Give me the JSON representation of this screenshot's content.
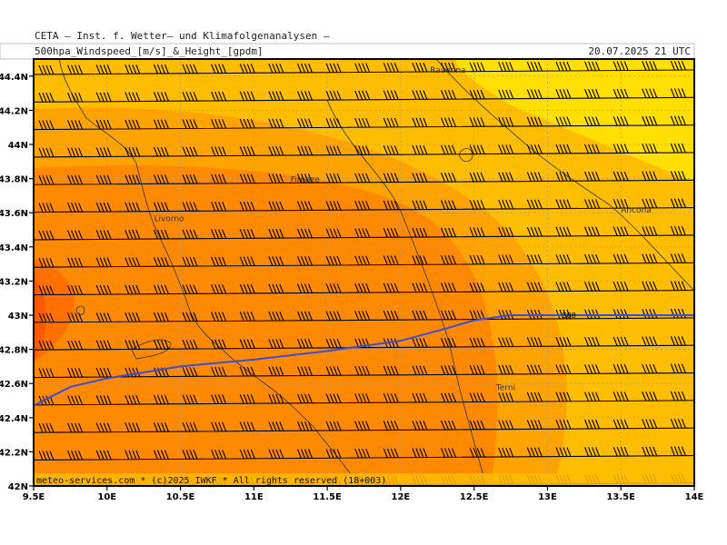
{
  "header": {
    "institute": "CETA — Inst. f. Wetter— und Klimafolgenanalysen —",
    "product": "500hpa_Windspeed_[m/s]_&_Height_[gpdm]",
    "valid_time": "20.07.2025 21 UTC"
  },
  "map": {
    "lon_range": [
      9.5,
      14.0
    ],
    "lat_range": [
      42.0,
      44.5
    ],
    "x_ticks": [
      {
        "value": 9.5,
        "label": "9.5E"
      },
      {
        "value": 10.0,
        "label": "10E"
      },
      {
        "value": 10.5,
        "label": "10.5E"
      },
      {
        "value": 11.0,
        "label": "11E"
      },
      {
        "value": 11.5,
        "label": "11.5E"
      },
      {
        "value": 12.0,
        "label": "12E"
      },
      {
        "value": 12.5,
        "label": "12.5E"
      },
      {
        "value": 13.0,
        "label": "13E"
      },
      {
        "value": 13.5,
        "label": "13.5E"
      },
      {
        "value": 14.0,
        "label": "14E"
      }
    ],
    "y_ticks": [
      {
        "value": 42.0,
        "label": "42N"
      },
      {
        "value": 42.2,
        "label": "42.2N"
      },
      {
        "value": 42.4,
        "label": "42.4N"
      },
      {
        "value": 42.6,
        "label": "42.6N"
      },
      {
        "value": 42.8,
        "label": "42.8N"
      },
      {
        "value": 43.0,
        "label": "43N"
      },
      {
        "value": 43.2,
        "label": "43.2N"
      },
      {
        "value": 43.4,
        "label": "43.4N"
      },
      {
        "value": 43.6,
        "label": "43.6N"
      },
      {
        "value": 43.8,
        "label": "43.8N"
      },
      {
        "value": 44.0,
        "label": "44N"
      },
      {
        "value": 44.2,
        "label": "44.2N"
      },
      {
        "value": 44.4,
        "label": "44.4N"
      }
    ],
    "cities": [
      {
        "name": "Ravenna",
        "lon": 12.2,
        "lat": 44.42
      },
      {
        "name": "Firenze",
        "lon": 11.25,
        "lat": 43.78
      },
      {
        "name": "Livorno",
        "lon": 10.32,
        "lat": 43.55
      },
      {
        "name": "Ancona",
        "lon": 13.5,
        "lat": 43.6
      },
      {
        "name": "Terni",
        "lon": 12.65,
        "lat": 42.56
      }
    ],
    "contour": {
      "label": "588",
      "points": [
        [
          9.5,
          42.47
        ],
        [
          9.75,
          42.58
        ],
        [
          10.0,
          42.63
        ],
        [
          10.5,
          42.7
        ],
        [
          11.0,
          42.74
        ],
        [
          11.5,
          42.79
        ],
        [
          12.0,
          42.85
        ],
        [
          12.3,
          42.92
        ],
        [
          12.5,
          42.97
        ],
        [
          12.75,
          43.0
        ],
        [
          13.0,
          43.0
        ],
        [
          14.0,
          43.0
        ]
      ]
    },
    "colors": {
      "windspeed_bands": [
        "#ffde00",
        "#ffbd00",
        "#ffa300",
        "#ff8900",
        "#ff7000",
        "#ff5a00"
      ],
      "contour_line": "#3a4fd6",
      "barbs": "#000000",
      "coastline": "#333333"
    },
    "credit": "meteo-services.com * (c)2025 IWKF * All rights reserved (18+003)"
  }
}
